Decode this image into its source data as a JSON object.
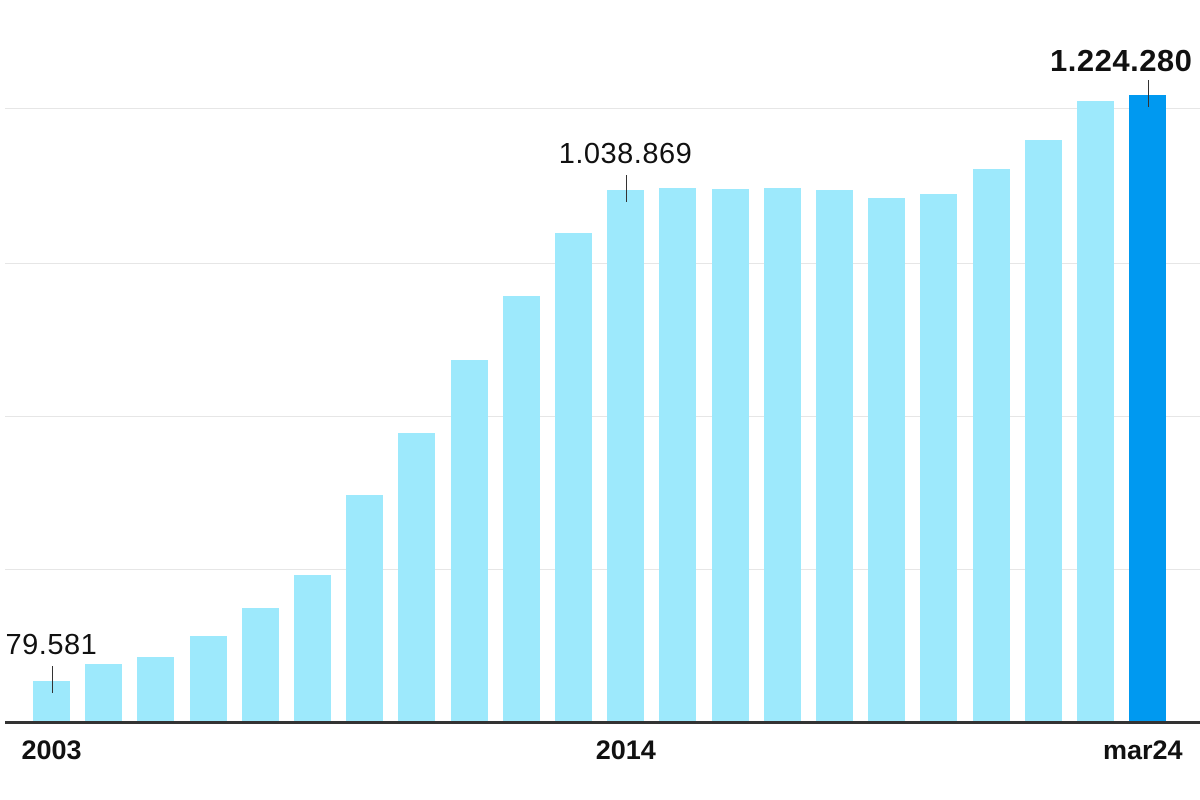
{
  "chart_data": {
    "type": "bar",
    "title": "",
    "xlabel": "",
    "ylabel": "",
    "ylim": [
      0,
      1350000
    ],
    "grid": true,
    "gridlines": [
      300000,
      600000,
      900000,
      1200000
    ],
    "categories": [
      "2003",
      "2004",
      "2005",
      "2006",
      "2007",
      "2008",
      "2009",
      "2010",
      "2011",
      "2012",
      "2013",
      "2014",
      "2015",
      "2016",
      "2017",
      "2018",
      "2019",
      "2020",
      "2021",
      "2022",
      "2023",
      "mar24"
    ],
    "values": [
      79581,
      113000,
      127000,
      168000,
      223000,
      288000,
      443000,
      565000,
      706000,
      831000,
      955000,
      1038869,
      1043000,
      1041000,
      1043000,
      1039000,
      1023000,
      1031000,
      1080000,
      1137000,
      1212000,
      1224280
    ],
    "highlight_index": 21,
    "colors": {
      "bar": "#9de9fc",
      "highlight": "#0099f0",
      "grid": "#e6e6e6",
      "axis": "#333333",
      "text": "#111111"
    },
    "annotations": [
      {
        "index": 0,
        "label": "79.581",
        "bold": false
      },
      {
        "index": 11,
        "label": "1.038.869",
        "bold": false
      },
      {
        "index": 21,
        "label": "1.224.280",
        "bold": true
      }
    ],
    "x_tick_labels": [
      {
        "index": 0,
        "label": "2003"
      },
      {
        "index": 11,
        "label": "2014"
      },
      {
        "index": 21,
        "label": "mar24"
      }
    ]
  }
}
